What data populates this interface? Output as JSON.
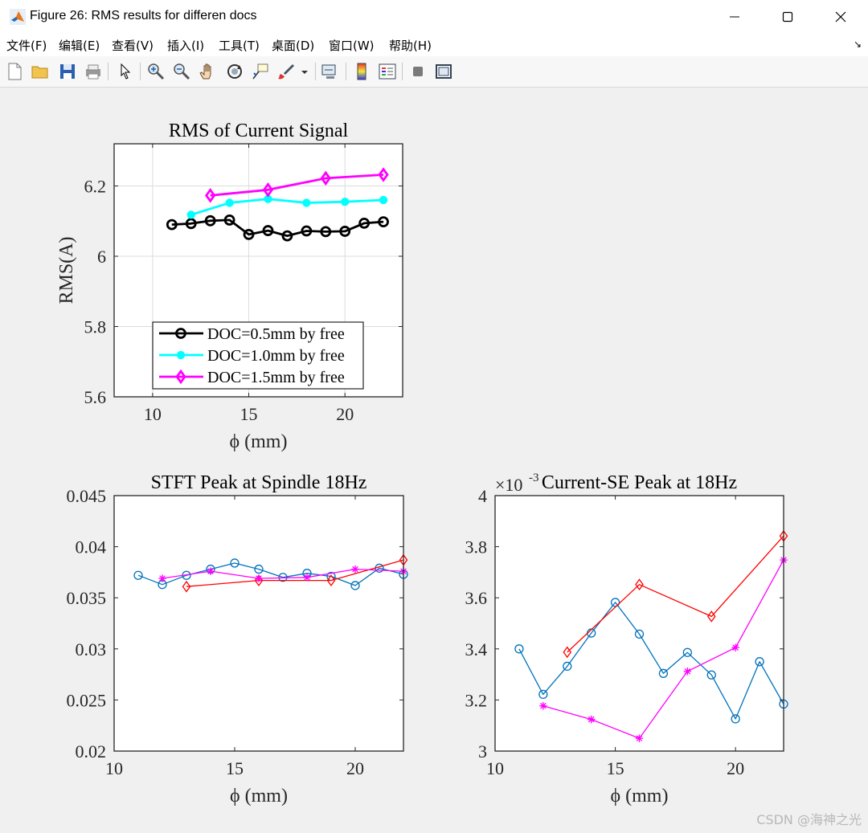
{
  "window": {
    "title": "Figure 26: RMS results for differen docs",
    "minimize_label": "—",
    "maximize_label": "☐",
    "close_label": "✕"
  },
  "menu": {
    "items": [
      "文件(F)",
      "编辑(E)",
      "查看(V)",
      "插入(I)",
      "工具(T)",
      "桌面(D)",
      "窗口(W)",
      "帮助(H)"
    ],
    "overflow_glyph": "↘"
  },
  "toolbar": {
    "buttons": [
      "new-figure",
      "open-file",
      "save-figure",
      "print-figure",
      "edit-plot",
      "zoom-in",
      "zoom-out",
      "pan",
      "rotate-3d",
      "data-cursor",
      "brush",
      "brush-dropdown",
      "link-plot",
      "insert-colorbar",
      "insert-legend",
      "hide-plot-tools",
      "show-plot-tools"
    ]
  },
  "watermark": "CSDN @海神之光",
  "colors": {
    "black": "#000000",
    "cyan": "#00ffff",
    "magenta": "#ff00ff",
    "blue": "#0072bd",
    "red": "#ff0000"
  },
  "chart_data": [
    {
      "type": "line",
      "title": "RMS of Current Signal",
      "xlabel": "ϕ (mm)",
      "ylabel": "RMS(A)",
      "xlim": [
        8,
        23
      ],
      "ylim": [
        5.6,
        6.32
      ],
      "xticks": [
        "10",
        "15",
        "20"
      ],
      "yticks": [
        "5.6",
        "5.8",
        "6",
        "6.2"
      ],
      "grid": true,
      "legend_position": "bottom-center",
      "series": [
        {
          "name": "DOC=0.5mm by free",
          "color": "#000000",
          "marker": "circle",
          "x": [
            11,
            12,
            13,
            14,
            15,
            16,
            17,
            18,
            19,
            20,
            21,
            22
          ],
          "y": [
            6.09,
            6.093,
            6.101,
            6.103,
            6.062,
            6.073,
            6.058,
            6.072,
            6.07,
            6.071,
            6.094,
            6.098
          ]
        },
        {
          "name": "DOC=1.0mm by free",
          "color": "#00ffff",
          "marker": "dot",
          "x": [
            12,
            14,
            16,
            18,
            20,
            22
          ],
          "y": [
            6.118,
            6.152,
            6.163,
            6.152,
            6.155,
            6.16
          ]
        },
        {
          "name": "DOC=1.5mm by free",
          "color": "#ff00ff",
          "marker": "diamond",
          "x": [
            13,
            16,
            19,
            22
          ],
          "y": [
            6.173,
            6.189,
            6.222,
            6.232
          ]
        }
      ]
    },
    {
      "type": "line",
      "title": "STFT Peak at Spindle 18Hz",
      "xlabel": "ϕ (mm)",
      "ylabel": "",
      "xlim": [
        10,
        22
      ],
      "ylim": [
        0.02,
        0.045
      ],
      "xticks": [
        "10",
        "15",
        "20"
      ],
      "yticks": [
        "0.02",
        "0.025",
        "0.03",
        "0.035",
        "0.04",
        "0.045"
      ],
      "grid": false,
      "series": [
        {
          "color": "#0072bd",
          "marker": "circle",
          "x": [
            11,
            12,
            13,
            14,
            15,
            16,
            17,
            18,
            19,
            20,
            21,
            22
          ],
          "y": [
            0.0372,
            0.0363,
            0.0372,
            0.0378,
            0.0384,
            0.0378,
            0.037,
            0.0374,
            0.0371,
            0.0362,
            0.0379,
            0.0373
          ]
        },
        {
          "color": "#ff0000",
          "marker": "diamond",
          "x": [
            13,
            16,
            19,
            22
          ],
          "y": [
            0.0361,
            0.0367,
            0.0367,
            0.0387
          ]
        },
        {
          "color": "#ff00ff",
          "marker": "star",
          "x": [
            12,
            14,
            16,
            18,
            20,
            22
          ],
          "y": [
            0.0369,
            0.0376,
            0.0369,
            0.037,
            0.0378,
            0.0376
          ]
        }
      ]
    },
    {
      "type": "line",
      "title": "Current-SE Peak at 18Hz",
      "xlabel": "ϕ (mm)",
      "ylabel": "",
      "xlim": [
        10,
        22
      ],
      "ylim": [
        3,
        4
      ],
      "xticks": [
        "10",
        "15",
        "20"
      ],
      "yticks": [
        "3",
        "3.2",
        "3.4",
        "3.6",
        "3.8",
        "4"
      ],
      "exponent_label": "×10",
      "exponent_power": "-3",
      "grid": false,
      "series": [
        {
          "color": "#0072bd",
          "marker": "circle",
          "x": [
            11,
            12,
            13,
            14,
            15,
            16,
            17,
            18,
            19,
            20,
            21,
            22
          ],
          "y": [
            3.4,
            3.222,
            3.332,
            3.462,
            3.582,
            3.458,
            3.304,
            3.386,
            3.298,
            3.126,
            3.35,
            3.184
          ]
        },
        {
          "color": "#ff0000",
          "marker": "diamond",
          "x": [
            13,
            16,
            19,
            22
          ],
          "y": [
            3.387,
            3.652,
            3.527,
            3.842
          ]
        },
        {
          "color": "#ff00ff",
          "marker": "star",
          "x": [
            12,
            14,
            16,
            18,
            20,
            22
          ],
          "y": [
            3.177,
            3.124,
            3.05,
            3.312,
            3.405,
            3.748
          ]
        }
      ]
    }
  ]
}
